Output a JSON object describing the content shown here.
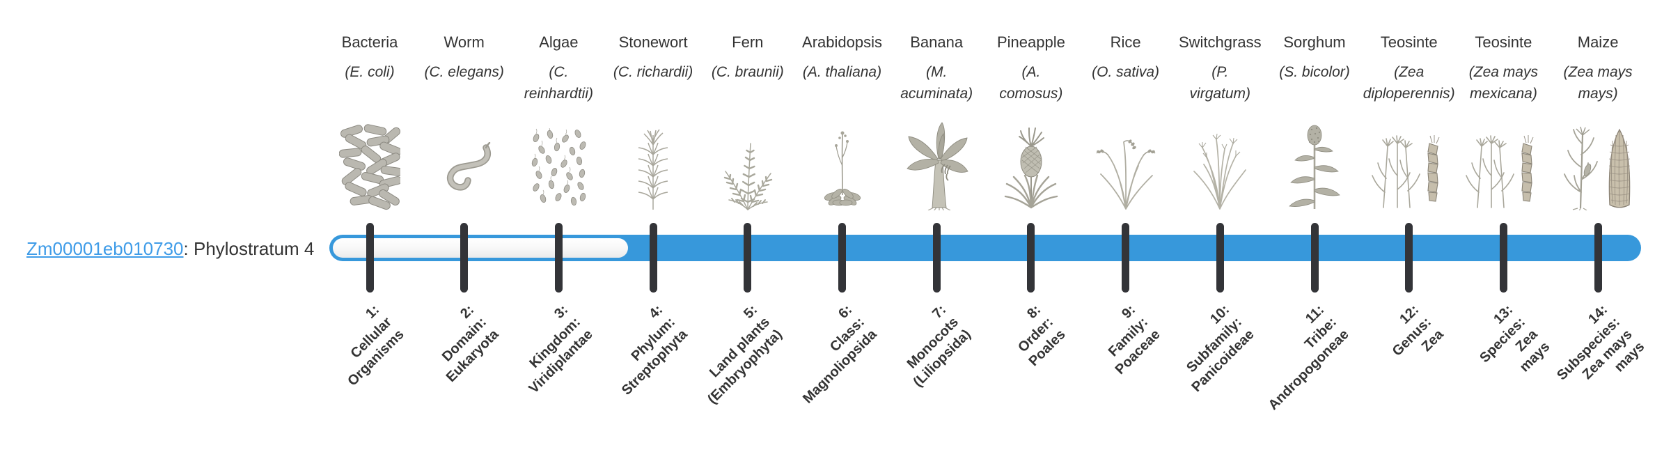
{
  "gene": {
    "id": "Zm00001eb010730",
    "suffix": ": Phylostratum 4"
  },
  "colors": {
    "bar_fill": "#3798db",
    "bar_track": "#f4f4f4",
    "tick": "#333438",
    "text": "#333333",
    "link": "#3f9ce8"
  },
  "timeline": {
    "phylostratum": 4,
    "total_strata": 14,
    "fill_from_stratum": 4
  },
  "nodes": [
    {
      "common": "Bacteria",
      "species": "(E. coli)",
      "icon": "bacteria-icon",
      "stratum": "1:\nCellular\nOrganisms"
    },
    {
      "common": "Worm",
      "species": "(C. elegans)",
      "icon": "worm-icon",
      "stratum": "2:\nDomain:\nEukaryota"
    },
    {
      "common": "Algae",
      "species": "(C.\nreinhardtii)",
      "icon": "algae-icon",
      "stratum": "3:\nKingdom:\nViridiplantae"
    },
    {
      "common": "Stonewort",
      "species": "(C. richardii)",
      "icon": "stonewort-icon",
      "stratum": "4:\nPhylum:\nStreptophyta"
    },
    {
      "common": "Fern",
      "species": "(C. braunii)",
      "icon": "fern-icon",
      "stratum": "5:\nLand plants\n(Embryophyta)"
    },
    {
      "common": "Arabidopsis",
      "species": "(A. thaliana)",
      "icon": "arabidopsis-icon",
      "stratum": "6:\nClass:\nMagnoliopsida"
    },
    {
      "common": "Banana",
      "species": "(M.\nacuminata)",
      "icon": "banana-icon",
      "stratum": "7:\nMonocots\n(Liliopsida)"
    },
    {
      "common": "Pineapple",
      "species": "(A.\ncomosus)",
      "icon": "pineapple-icon",
      "stratum": "8:\nOrder:\nPoales"
    },
    {
      "common": "Rice",
      "species": "(O. sativa)",
      "icon": "rice-icon",
      "stratum": "9:\nFamily:\nPoaceae"
    },
    {
      "common": "Switchgrass",
      "species": "(P.\nvirgatum)",
      "icon": "switchgrass-icon",
      "stratum": "10:\nSubfamily:\nPanicoideae"
    },
    {
      "common": "Sorghum",
      "species": "(S. bicolor)",
      "icon": "sorghum-icon",
      "stratum": "11:\nTribe:\nAndropogoneae"
    },
    {
      "common": "Teosinte",
      "species": "(Zea\ndiploperennis)",
      "icon": "teosinte-icon",
      "stratum": "12:\nGenus:\nZea"
    },
    {
      "common": "Teosinte",
      "species": "(Zea mays\nmexicana)",
      "icon": "teosinte-icon",
      "stratum": "13:\nSpecies:\nZea\nmays"
    },
    {
      "common": "Maize",
      "species": "(Zea mays\nmays)",
      "icon": "maize-icon",
      "stratum": "14:\nSubspecies:\nZea mays\nmays"
    }
  ]
}
